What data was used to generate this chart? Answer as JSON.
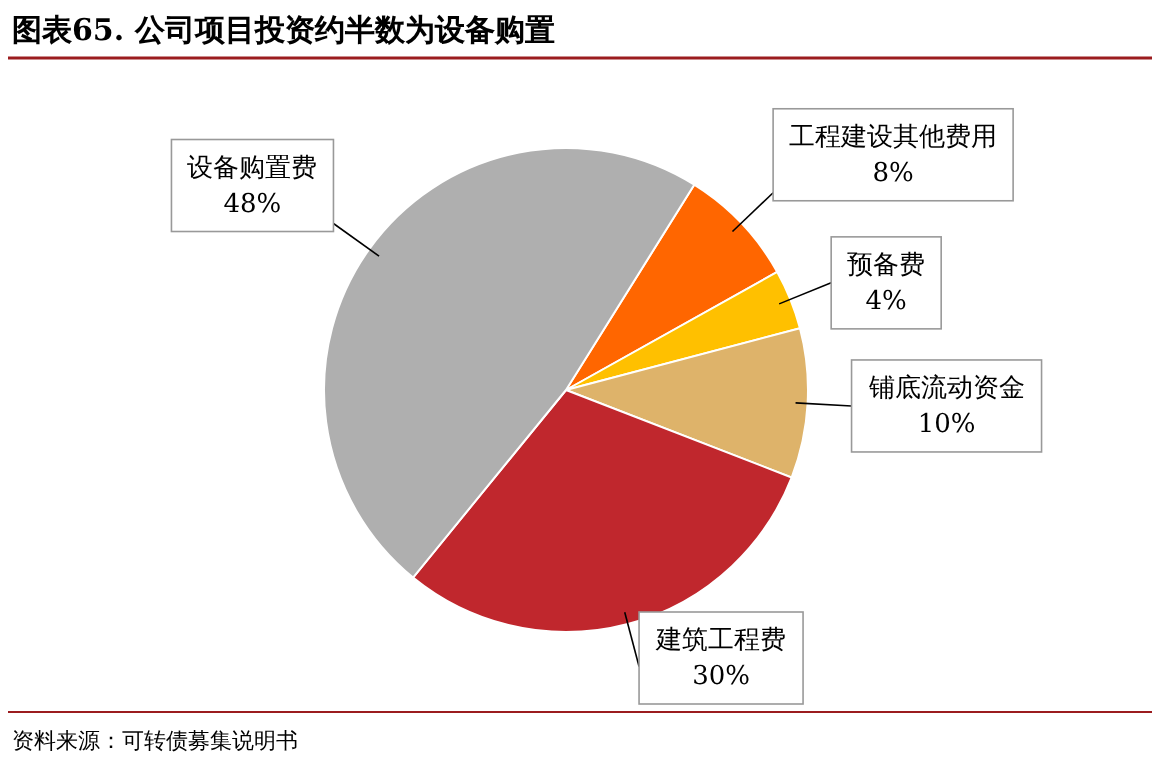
{
  "chart_data": {
    "type": "pie",
    "title": "图表65. 公司项目投资约半数为设备购置",
    "categories": [
      "工程建设其他费用",
      "预备费",
      "铺底流动资金",
      "建筑工程费",
      "设备购置费"
    ],
    "values": [
      8,
      4,
      10,
      30,
      48
    ],
    "value_labels": [
      "8%",
      "4%",
      "10%",
      "30%",
      "48%"
    ],
    "colors": [
      "#ff6600",
      "#ffc000",
      "#deb36a",
      "#c0272d",
      "#afafaf"
    ],
    "annotations": [
      "资料来源：可转债募集说明书"
    ]
  }
}
